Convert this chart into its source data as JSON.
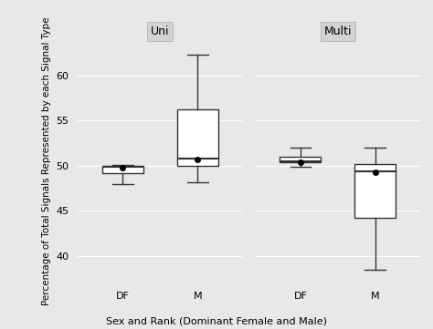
{
  "panels": [
    "Uni",
    "Multi"
  ],
  "categories": [
    "DF",
    "M"
  ],
  "xlabel": "Sex and Rank (Dominant Female and Male)",
  "ylabel": "Percentage of Total Signals Represented by each Signal Type",
  "ylim": [
    37,
    64
  ],
  "yticks": [
    40,
    45,
    50,
    55,
    60
  ],
  "background_color": "#e8e8e8",
  "panel_header_color": "#d3d3d3",
  "box_facecolor": "white",
  "box_edgecolor": "#333333",
  "median_color": "#333333",
  "whisker_color": "#333333",
  "mean_marker_color": "black",
  "boxes": {
    "Uni": {
      "DF": {
        "whislo": 48.0,
        "q1": 49.2,
        "med": 49.9,
        "q3": 50.0,
        "whishi": 50.1,
        "mean": 49.8
      },
      "M": {
        "whislo": 48.2,
        "q1": 50.0,
        "med": 50.8,
        "q3": 56.3,
        "whishi": 62.3,
        "mean": 50.7
      }
    },
    "Multi": {
      "DF": {
        "whislo": 49.9,
        "q1": 50.4,
        "med": 50.5,
        "q3": 51.0,
        "whishi": 52.0,
        "mean": 50.4
      },
      "M": {
        "whislo": 38.5,
        "q1": 44.2,
        "med": 49.4,
        "q3": 50.2,
        "whishi": 52.0,
        "mean": 49.3
      }
    }
  }
}
